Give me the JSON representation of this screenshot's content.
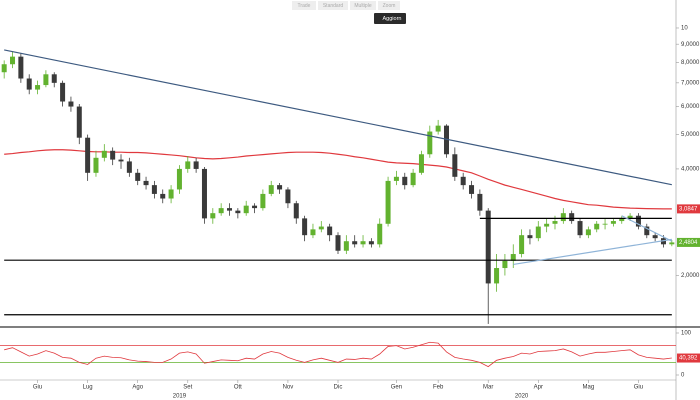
{
  "toolbar": {
    "buttons": [
      "Trade",
      "Standard",
      "Multiple",
      "Zoom"
    ],
    "refresh": "Aggiorn"
  },
  "chart_data": {
    "type": "candlestick",
    "log_scale": true,
    "categories": [
      null,
      null,
      null,
      null,
      "Giu",
      null,
      null,
      null,
      null,
      null,
      "Lug",
      null,
      null,
      null,
      null,
      null,
      "Ago",
      null,
      null,
      null,
      null,
      null,
      "Set",
      null,
      null,
      null,
      null,
      null,
      "Ott",
      null,
      null,
      null,
      null,
      null,
      "Nov",
      null,
      null,
      null,
      null,
      null,
      "Dic",
      null,
      null,
      null,
      null,
      null,
      null,
      "Gen",
      null,
      null,
      null,
      null,
      "Feb",
      null,
      null,
      null,
      null,
      null,
      "Mar",
      null,
      null,
      null,
      null,
      null,
      "Apr",
      null,
      null,
      null,
      null,
      null,
      "Mag",
      null,
      null,
      null,
      null,
      null,
      "Giu",
      null,
      null,
      null,
      null
    ],
    "year_categories": [
      null,
      null,
      null,
      null,
      null,
      null,
      null,
      null,
      null,
      null,
      null,
      null,
      null,
      null,
      null,
      null,
      null,
      null,
      null,
      null,
      null,
      "2019",
      null,
      null,
      null,
      null,
      null,
      null,
      null,
      null,
      null,
      null,
      null,
      null,
      null,
      null,
      null,
      null,
      null,
      null,
      null,
      null,
      null,
      null,
      null,
      null,
      null,
      null,
      null,
      null,
      null,
      null,
      null,
      null,
      null,
      null,
      null,
      null,
      null,
      null,
      null,
      null,
      "2020",
      null,
      null,
      null,
      null,
      null,
      null,
      null,
      null,
      null,
      null,
      null,
      null,
      null,
      null,
      null,
      null,
      null,
      null
    ],
    "open": [
      7.5,
      7.9,
      8.3,
      7.2,
      6.7,
      6.9,
      7.4,
      7.0,
      6.2,
      6.0,
      4.9,
      3.9,
      4.3,
      4.5,
      4.25,
      4.2,
      3.9,
      3.7,
      3.6,
      3.4,
      3.3,
      3.5,
      4.0,
      4.2,
      4.0,
      2.9,
      3.0,
      3.1,
      3.05,
      3.0,
      3.15,
      3.1,
      3.4,
      3.6,
      3.5,
      3.2,
      2.9,
      2.6,
      2.7,
      2.75,
      2.6,
      2.35,
      2.5,
      2.45,
      2.5,
      2.45,
      2.8,
      3.7,
      3.8,
      3.6,
      3.9,
      4.4,
      5.1,
      5.3,
      4.4,
      3.8,
      3.6,
      3.4,
      3.05,
      1.9,
      2.1,
      2.2,
      2.3,
      2.6,
      2.55,
      2.75,
      2.8,
      2.85,
      3.0,
      2.85,
      2.6,
      2.7,
      2.8,
      2.8,
      2.85,
      2.9,
      2.95,
      2.75,
      2.6,
      2.55,
      2.45
    ],
    "high": [
      8.1,
      8.6,
      8.5,
      7.4,
      7.1,
      7.6,
      7.5,
      7.1,
      6.4,
      6.1,
      5.0,
      4.5,
      4.7,
      4.6,
      4.4,
      4.3,
      4.0,
      3.8,
      3.7,
      3.5,
      3.6,
      4.1,
      4.35,
      4.3,
      4.05,
      3.1,
      3.2,
      3.2,
      3.1,
      3.25,
      3.2,
      3.5,
      3.7,
      3.65,
      3.55,
      3.25,
      2.95,
      2.8,
      2.85,
      2.8,
      2.65,
      2.6,
      2.6,
      2.6,
      2.55,
      2.9,
      3.8,
      3.95,
      3.9,
      4.0,
      4.5,
      5.3,
      5.5,
      5.35,
      4.6,
      3.9,
      3.7,
      3.5,
      3.1,
      2.3,
      2.3,
      2.45,
      2.7,
      2.7,
      2.85,
      2.9,
      2.95,
      3.1,
      3.05,
      2.9,
      2.75,
      2.85,
      2.9,
      2.9,
      2.95,
      3.0,
      3.0,
      2.8,
      2.65,
      2.6,
      2.52
    ],
    "low": [
      7.2,
      7.7,
      7.0,
      6.5,
      6.5,
      6.8,
      6.8,
      6.0,
      5.8,
      4.7,
      3.7,
      3.8,
      4.2,
      4.1,
      4.0,
      3.8,
      3.6,
      3.5,
      3.3,
      3.2,
      3.2,
      3.4,
      3.9,
      3.9,
      2.8,
      2.8,
      2.95,
      2.95,
      2.9,
      2.95,
      3.0,
      3.05,
      3.35,
      3.4,
      3.1,
      2.8,
      2.5,
      2.55,
      2.65,
      2.5,
      2.3,
      2.3,
      2.4,
      2.4,
      2.4,
      2.4,
      2.75,
      3.6,
      3.5,
      3.55,
      3.85,
      4.3,
      5.0,
      4.3,
      3.7,
      3.5,
      3.3,
      2.95,
      1.46,
      1.8,
      2.0,
      2.1,
      2.25,
      2.45,
      2.5,
      2.65,
      2.7,
      2.8,
      2.8,
      2.55,
      2.55,
      2.65,
      2.7,
      2.75,
      2.8,
      2.85,
      2.7,
      2.55,
      2.5,
      2.4,
      2.42
    ],
    "close": [
      7.9,
      8.3,
      7.2,
      6.7,
      6.9,
      7.4,
      7.0,
      6.2,
      6.0,
      4.9,
      3.9,
      4.3,
      4.5,
      4.25,
      4.2,
      3.9,
      3.7,
      3.6,
      3.4,
      3.3,
      3.5,
      4.0,
      4.2,
      4.0,
      2.9,
      3.0,
      3.1,
      3.05,
      3.0,
      3.15,
      3.1,
      3.4,
      3.6,
      3.5,
      3.2,
      2.9,
      2.6,
      2.7,
      2.75,
      2.6,
      2.35,
      2.5,
      2.45,
      2.5,
      2.45,
      2.8,
      3.7,
      3.8,
      3.6,
      3.9,
      4.4,
      5.1,
      5.3,
      4.4,
      3.8,
      3.6,
      3.4,
      3.05,
      1.9,
      2.1,
      2.2,
      2.3,
      2.6,
      2.55,
      2.75,
      2.8,
      2.85,
      3.0,
      2.85,
      2.6,
      2.7,
      2.8,
      2.8,
      2.85,
      2.9,
      2.95,
      2.75,
      2.6,
      2.55,
      2.45,
      2.4804
    ],
    "up_color": "#62b22f",
    "down_color": "#3a3a3a",
    "moving_average": {
      "color": "#e0393e",
      "values": [
        4.4,
        4.42,
        4.45,
        4.47,
        4.5,
        4.52,
        4.53,
        4.53,
        4.52,
        4.5,
        4.48,
        4.47,
        4.47,
        4.46,
        4.46,
        4.45,
        4.45,
        4.44,
        4.42,
        4.4,
        4.38,
        4.36,
        4.33,
        4.3,
        4.28,
        4.27,
        4.28,
        4.3,
        4.32,
        4.35,
        4.37,
        4.39,
        4.41,
        4.43,
        4.45,
        4.46,
        4.46,
        4.46,
        4.45,
        4.43,
        4.4,
        4.37,
        4.33,
        4.3,
        4.26,
        4.22,
        4.18,
        4.16,
        4.15,
        4.14,
        4.12,
        4.1,
        4.08,
        4.05,
        4.0,
        3.95,
        3.9,
        3.82,
        3.74,
        3.67,
        3.6,
        3.55,
        3.5,
        3.45,
        3.4,
        3.35,
        3.3,
        3.26,
        3.23,
        3.2,
        3.17,
        3.16,
        3.14,
        3.12,
        3.11,
        3.1,
        3.095,
        3.09,
        3.087,
        3.0847,
        3.0847
      ]
    },
    "lines": [
      {
        "color": "#3d5a80",
        "x": [
          0,
          80
        ],
        "values": [
          8.67,
          3.61
        ]
      },
      {
        "color": "#000000",
        "x": [
          0,
          80
        ],
        "values": [
          2.21,
          2.21
        ]
      },
      {
        "color": "#000000",
        "x": [
          0,
          80
        ],
        "values": [
          1.55,
          1.55
        ]
      },
      {
        "color": "#000000",
        "x": [
          57,
          80
        ],
        "values": [
          2.9,
          2.9
        ]
      },
      {
        "color": "#8fb4d8",
        "x": [
          61,
          80
        ],
        "values": [
          2.15,
          2.53
        ]
      },
      {
        "color": "#8fb4d8",
        "x": [
          74,
          80
        ],
        "values": [
          2.95,
          2.5
        ]
      }
    ],
    "ylim": [
      1.45,
      11.24
    ],
    "yticks": [
      10,
      {
        "value": 9,
        "label": "9,0000"
      },
      {
        "value": 8,
        "label": "8,0000"
      },
      {
        "value": 7,
        "label": "7,0000"
      },
      {
        "value": 6,
        "label": "6,0000"
      },
      {
        "value": 5,
        "label": "5,0000"
      },
      {
        "value": 4,
        "label": "4,0000"
      },
      {
        "value": 2,
        "label": "2,0000"
      }
    ],
    "markers": [
      {
        "value": 3.0847,
        "label": "3,0847",
        "color": "#e0393e"
      },
      {
        "value": 2.4804,
        "label": "2,4804",
        "color": "#62b22f"
      }
    ],
    "rsi": {
      "color": "#e0393e",
      "values": [
        60,
        65,
        55,
        45,
        50,
        58,
        52,
        42,
        40,
        30,
        25,
        40,
        45,
        42,
        41,
        36,
        33,
        32,
        30,
        30,
        38,
        52,
        55,
        50,
        28,
        32,
        36,
        35,
        34,
        40,
        38,
        50,
        56,
        52,
        42,
        35,
        30,
        36,
        40,
        35,
        30,
        38,
        37,
        40,
        38,
        50,
        68,
        70,
        62,
        66,
        72,
        78,
        76,
        55,
        42,
        38,
        35,
        30,
        20,
        35,
        40,
        44,
        52,
        50,
        56,
        57,
        58,
        62,
        55,
        45,
        50,
        54,
        54,
        56,
        58,
        60,
        48,
        42,
        40,
        38,
        40.392
      ],
      "ylim": [
        0,
        100
      ],
      "yticks": [
        100,
        0
      ],
      "levels": [
        {
          "value": 70,
          "color": "#e0393e"
        },
        {
          "value": 30,
          "color": "#62b22f"
        }
      ],
      "marker": {
        "value": 40.392,
        "label": "40,392",
        "color": "#e0393e"
      }
    }
  }
}
